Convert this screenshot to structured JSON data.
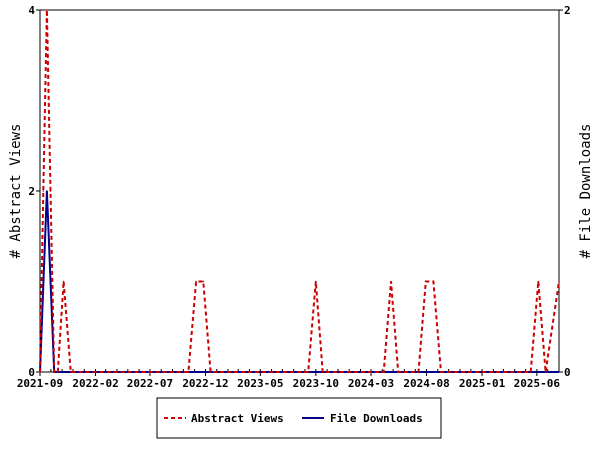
{
  "chart_data": {
    "type": "line",
    "title": "",
    "xlabel": "",
    "ylabel_left": "# Abstract Views",
    "ylabel_right": "# File Downloads",
    "x_tick_labels": [
      "2021-09",
      "2022-02",
      "2022-07",
      "2022-12",
      "2023-05",
      "2023-10",
      "2024-03",
      "2024-08",
      "2025-01",
      "2025-06"
    ],
    "x_range": [
      "2021-09",
      "2025-08"
    ],
    "ylim_left": [
      0,
      4
    ],
    "yticks_left": [
      "0",
      "2",
      "4"
    ],
    "ylim_right": [
      0,
      2
    ],
    "yticks_right": [
      "0",
      "2"
    ],
    "grid": false,
    "legend_position": "bottom",
    "series": [
      {
        "name": "Abstract Views",
        "axis": "left",
        "color": "#cc0000",
        "style": "dashed",
        "points": [
          [
            "2021-09-01",
            0
          ],
          [
            "2021-09-10",
            2
          ],
          [
            "2021-09-20",
            4
          ],
          [
            "2021-09-30",
            2
          ],
          [
            "2021-10-10",
            0
          ],
          [
            "2021-10-20",
            0
          ],
          [
            "2021-11-05",
            1
          ],
          [
            "2021-11-25",
            0
          ],
          [
            "2022-10-15",
            0
          ],
          [
            "2022-11-05",
            1
          ],
          [
            "2022-11-25",
            1
          ],
          [
            "2022-12-15",
            0
          ],
          [
            "2023-09-10",
            0
          ],
          [
            "2023-10-01",
            1
          ],
          [
            "2023-10-20",
            0
          ],
          [
            "2024-04-05",
            0
          ],
          [
            "2024-04-25",
            1
          ],
          [
            "2024-05-15",
            0
          ],
          [
            "2024-07-10",
            0
          ],
          [
            "2024-07-30",
            1
          ],
          [
            "2024-08-20",
            1
          ],
          [
            "2024-09-10",
            0
          ],
          [
            "2025-05-15",
            0
          ],
          [
            "2025-06-05",
            1
          ],
          [
            "2025-06-25",
            0
          ],
          [
            "2025-08-01",
            1
          ]
        ]
      },
      {
        "name": "File Downloads",
        "axis": "right",
        "color": "#00008b",
        "style": "solid",
        "points": [
          [
            "2021-09-01",
            0
          ],
          [
            "2021-09-20",
            1
          ],
          [
            "2021-10-10",
            0
          ],
          [
            "2025-08-01",
            0
          ]
        ]
      }
    ]
  }
}
